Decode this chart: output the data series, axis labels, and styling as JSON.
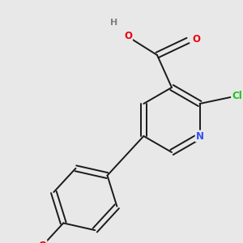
{
  "background_color": "#e8e8e8",
  "bond_color": "#1a1a1a",
  "bond_width": 1.4,
  "atom_colors": {
    "C": "#1a1a1a",
    "H": "#808080",
    "O": "#e8000d",
    "N": "#3050f8",
    "Cl": "#1dc01d"
  },
  "figsize": [
    3.0,
    3.0
  ],
  "dpi": 100,
  "xlim": [
    0,
    300
  ],
  "ylim": [
    0,
    300
  ]
}
